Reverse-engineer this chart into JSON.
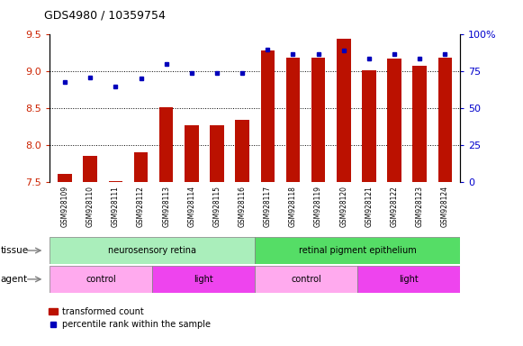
{
  "title": "GDS4980 / 10359754",
  "samples": [
    "GSM928109",
    "GSM928110",
    "GSM928111",
    "GSM928112",
    "GSM928113",
    "GSM928114",
    "GSM928115",
    "GSM928116",
    "GSM928117",
    "GSM928118",
    "GSM928119",
    "GSM928120",
    "GSM928121",
    "GSM928122",
    "GSM928123",
    "GSM928124"
  ],
  "transformed_count": [
    7.6,
    7.85,
    7.51,
    7.9,
    8.51,
    8.27,
    8.27,
    8.34,
    9.29,
    9.19,
    9.19,
    9.44,
    9.01,
    9.18,
    9.07,
    9.19
  ],
  "percentile_rank": [
    68,
    71,
    65,
    70,
    80,
    74,
    74,
    74,
    90,
    87,
    87,
    89,
    84,
    87,
    84,
    87
  ],
  "bar_color": "#bb1100",
  "dot_color": "#0000bb",
  "ylim_left": [
    7.5,
    9.5
  ],
  "ylim_right": [
    0,
    100
  ],
  "yticks_left": [
    7.5,
    8.0,
    8.5,
    9.0,
    9.5
  ],
  "yticks_right": [
    0,
    25,
    50,
    75,
    100
  ],
  "ytick_labels_right": [
    "0",
    "25",
    "50",
    "75",
    "100%"
  ],
  "grid_values": [
    8.0,
    8.5,
    9.0
  ],
  "tissue_groups": [
    {
      "label": "neurosensory retina",
      "start": 0,
      "end": 7,
      "color": "#aaeebb"
    },
    {
      "label": "retinal pigment epithelium",
      "start": 8,
      "end": 15,
      "color": "#55dd66"
    }
  ],
  "agent_groups": [
    {
      "label": "control",
      "start": 0,
      "end": 3,
      "color": "#ffaaee"
    },
    {
      "label": "light",
      "start": 4,
      "end": 7,
      "color": "#ee44ee"
    },
    {
      "label": "control",
      "start": 8,
      "end": 11,
      "color": "#ffaaee"
    },
    {
      "label": "light",
      "start": 12,
      "end": 15,
      "color": "#ee44ee"
    }
  ],
  "legend_bar_label": "transformed count",
  "legend_dot_label": "percentile rank within the sample",
  "tissue_label": "tissue",
  "agent_label": "agent",
  "axis_label_color": "#cc2200",
  "right_axis_label_color": "#0000cc",
  "xtick_bg_color": "#cccccc",
  "fig_bg_color": "#ffffff",
  "plot_bg": "#ffffff"
}
